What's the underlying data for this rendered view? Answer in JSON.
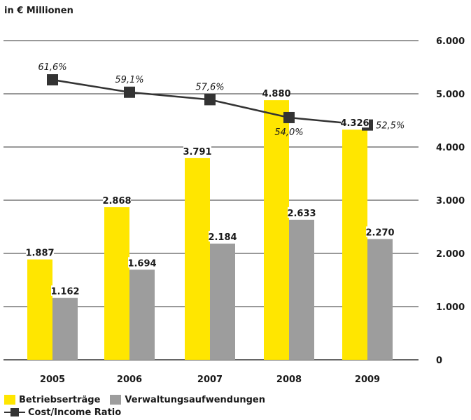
{
  "unit_label": "in € Millionen",
  "legend": {
    "betriebsertraege": "Betriebserträge",
    "verwaltungsaufwendungen": "Verwaltungsaufwendungen",
    "cost_income_ratio": "Cost/Income Ratio"
  },
  "colors": {
    "betriebsertraege": "#ffe600",
    "verwaltungsaufwendungen": "#9d9d9d",
    "ratio_line": "#333333"
  },
  "chart_data": {
    "type": "bar",
    "categories": [
      "2005",
      "2006",
      "2007",
      "2008",
      "2009"
    ],
    "series": [
      {
        "name": "Betriebserträge",
        "values": [
          1887,
          2868,
          3791,
          4880,
          4326
        ],
        "labels": [
          "1.887",
          "2.868",
          "3.791",
          "4.880",
          "4.326"
        ]
      },
      {
        "name": "Verwaltungsaufwendungen",
        "values": [
          1162,
          1694,
          2184,
          2633,
          2270
        ],
        "labels": [
          "1.162",
          "1.694",
          "2.184",
          "2.633",
          "2.270"
        ]
      }
    ],
    "line_series": {
      "name": "Cost/Income Ratio",
      "values": [
        61.6,
        59.1,
        57.6,
        54.0,
        52.5
      ],
      "labels": [
        "61,6%",
        "59,1%",
        "57,6%",
        "54,0%",
        "52,5%"
      ]
    },
    "ylim": [
      0,
      6000
    ],
    "yticks": [
      0,
      1000,
      2000,
      3000,
      4000,
      5000,
      6000
    ],
    "ytick_labels": [
      "0",
      "1.000",
      "2.000",
      "3.000",
      "4.000",
      "5.000",
      "6.000"
    ],
    "grid": true
  }
}
